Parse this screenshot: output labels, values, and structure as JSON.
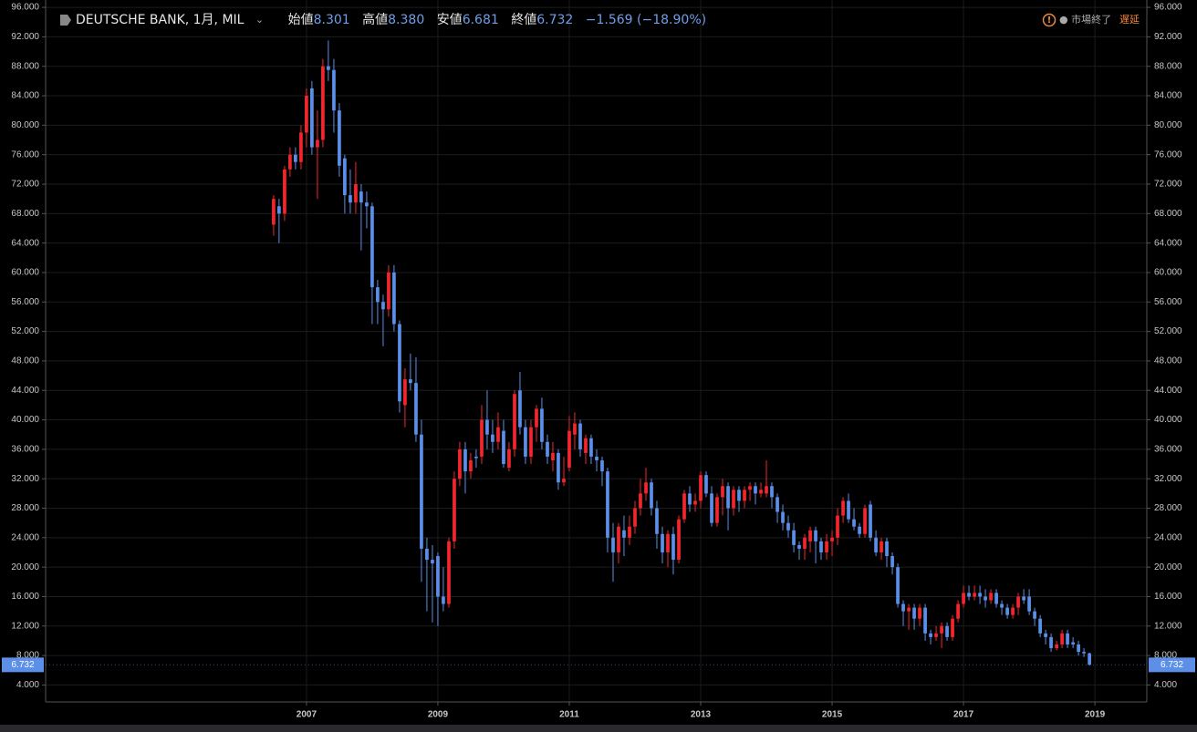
{
  "header": {
    "symbol": "DEUTSCHE BANK, 1月, MIL",
    "open_label": "始値",
    "open": "8.301",
    "high_label": "高値",
    "high": "8.380",
    "low_label": "安値",
    "low": "6.681",
    "close_label": "終値",
    "close": "6.732",
    "change": "−1.569 (−18.90%)",
    "status": "● 市場終了",
    "delay": "遅延"
  },
  "chart_data": {
    "type": "candlestick",
    "up_color": "#f2262d",
    "down_color": "#5b8fe8",
    "grid": true,
    "last_price_label": "6.732",
    "xlim": [
      2003.03,
      2019.79
    ],
    "ylim": [
      1.7,
      97
    ],
    "xticks": [
      2007,
      2009,
      2011,
      2013,
      2015,
      2017,
      2019
    ],
    "yticks": [
      {
        "value": 4,
        "label": "4.000"
      },
      {
        "value": 8,
        "label": "8.000"
      },
      {
        "value": 12,
        "label": "12.000"
      },
      {
        "value": 16,
        "label": "16.000"
      },
      {
        "value": 20,
        "label": "20.000"
      },
      {
        "value": 24,
        "label": "24.000"
      },
      {
        "value": 28,
        "label": "28.000"
      },
      {
        "value": 32,
        "label": "32.000"
      },
      {
        "value": 36,
        "label": "36.000"
      },
      {
        "value": 40,
        "label": "40.000"
      },
      {
        "value": 44,
        "label": "44.000"
      },
      {
        "value": 48,
        "label": "48.000"
      },
      {
        "value": 52,
        "label": "52.000"
      },
      {
        "value": 56,
        "label": "56.000"
      },
      {
        "value": 60,
        "label": "60.000"
      },
      {
        "value": 64,
        "label": "64.000"
      },
      {
        "value": 68,
        "label": "68.000"
      },
      {
        "value": 72,
        "label": "72.000"
      },
      {
        "value": 76,
        "label": "76.000"
      },
      {
        "value": 80,
        "label": "80.000"
      },
      {
        "value": 84,
        "label": "84.000"
      },
      {
        "value": 88,
        "label": "88.000"
      },
      {
        "value": 92,
        "label": "92.000"
      },
      {
        "value": 96,
        "label": "96.000"
      }
    ],
    "x": [
      2006.5,
      2006.583,
      2006.667,
      2006.75,
      2006.833,
      2006.917,
      2007.0,
      2007.083,
      2007.167,
      2007.25,
      2007.333,
      2007.417,
      2007.5,
      2007.583,
      2007.667,
      2007.75,
      2007.833,
      2007.917,
      2008.0,
      2008.083,
      2008.167,
      2008.25,
      2008.333,
      2008.417,
      2008.5,
      2008.583,
      2008.667,
      2008.75,
      2008.833,
      2008.917,
      2009.0,
      2009.083,
      2009.167,
      2009.25,
      2009.333,
      2009.417,
      2009.5,
      2009.583,
      2009.667,
      2009.75,
      2009.833,
      2009.917,
      2010.0,
      2010.083,
      2010.167,
      2010.25,
      2010.333,
      2010.417,
      2010.5,
      2010.583,
      2010.667,
      2010.75,
      2010.833,
      2010.917,
      2011.0,
      2011.083,
      2011.167,
      2011.25,
      2011.333,
      2011.417,
      2011.5,
      2011.583,
      2011.667,
      2011.75,
      2011.833,
      2011.917,
      2012.0,
      2012.083,
      2012.167,
      2012.25,
      2012.333,
      2012.417,
      2012.5,
      2012.583,
      2012.667,
      2012.75,
      2012.833,
      2012.917,
      2013.0,
      2013.083,
      2013.167,
      2013.25,
      2013.333,
      2013.417,
      2013.5,
      2013.583,
      2013.667,
      2013.75,
      2013.833,
      2013.917,
      2014.0,
      2014.083,
      2014.167,
      2014.25,
      2014.333,
      2014.417,
      2014.5,
      2014.583,
      2014.667,
      2014.75,
      2014.833,
      2014.917,
      2015.0,
      2015.083,
      2015.167,
      2015.25,
      2015.333,
      2015.417,
      2015.5,
      2015.583,
      2015.667,
      2015.75,
      2015.833,
      2015.917,
      2016.0,
      2016.083,
      2016.167,
      2016.25,
      2016.333,
      2016.417,
      2016.5,
      2016.583,
      2016.667,
      2016.75,
      2016.833,
      2016.917,
      2017.0,
      2017.083,
      2017.167,
      2017.25,
      2017.333,
      2017.417,
      2017.5,
      2017.583,
      2017.667,
      2017.75,
      2017.833,
      2017.917,
      2018.0,
      2018.083,
      2018.167,
      2018.25,
      2018.333,
      2018.417,
      2018.5,
      2018.583,
      2018.667,
      2018.75,
      2018.833,
      2018.917
    ],
    "open": [
      66.5,
      69,
      68,
      74,
      76,
      75,
      79,
      85,
      77,
      78,
      88,
      87.5,
      82,
      75.5,
      70.5,
      69.5,
      71,
      69.5,
      69,
      58,
      56,
      55,
      60,
      53,
      42,
      45.5,
      45,
      38,
      22.5,
      21,
      21.5,
      16,
      15,
      23.5,
      32,
      36,
      33,
      35,
      35,
      40,
      38,
      37,
      38.5,
      33.5,
      36,
      44,
      39,
      35,
      39,
      41.5,
      37,
      34.5,
      35.5,
      31.5,
      33.5,
      38,
      39.5,
      35.5,
      37.5,
      35,
      34.5,
      33,
      24,
      22,
      25,
      24,
      25.5,
      28,
      30,
      31.5,
      28,
      24.5,
      22,
      24.5,
      21,
      26.5,
      30,
      28.5,
      29,
      32.5,
      30,
      26,
      29.5,
      31,
      28,
      30.5,
      29,
      30.5,
      31,
      30,
      30,
      31,
      29.5,
      27.5,
      26,
      25,
      23,
      22.5,
      23.5,
      25,
      23.5,
      22,
      23.5,
      24,
      27,
      29,
      26.5,
      25.5,
      24.5,
      28.5,
      24,
      22,
      23.5,
      21.5,
      20,
      15,
      14,
      14.5,
      13,
      14.5,
      11,
      10.5,
      11,
      12,
      10.5,
      13,
      15,
      16.5,
      16,
      16.5,
      16,
      15.5,
      16.5,
      15,
      14.5,
      13.5,
      14.5,
      16,
      16,
      14,
      13,
      11,
      10.5,
      9,
      9.5,
      11,
      9.8,
      9.5,
      8.5,
      8.301
    ],
    "high": [
      70.5,
      70,
      74.5,
      77,
      77,
      80,
      85,
      86,
      82,
      89,
      91.5,
      89,
      83,
      76,
      74,
      75,
      72,
      71,
      69.5,
      59,
      57,
      61,
      61,
      53.5,
      47,
      49,
      48.5,
      40,
      24,
      23,
      22,
      20,
      24,
      33,
      37,
      37,
      35.5,
      36,
      42,
      44,
      40,
      41,
      40,
      37,
      44,
      46.5,
      40,
      40,
      42,
      43,
      38,
      37,
      36,
      35,
      40.5,
      41,
      40,
      38,
      38,
      36,
      35,
      33.5,
      26,
      26,
      27,
      27,
      29,
      32,
      33.5,
      32,
      29,
      25.5,
      25,
      25.5,
      27,
      30.5,
      31,
      30,
      33,
      33,
      31,
      30,
      32,
      31.5,
      31,
      31,
      31,
      31.5,
      31.5,
      31.5,
      34.5,
      31.5,
      30,
      28.5,
      27,
      26,
      23.5,
      24.5,
      25.5,
      25.5,
      24,
      24.5,
      25,
      28,
      29.5,
      30,
      28,
      26,
      28.5,
      29,
      25,
      24,
      24,
      22,
      20.5,
      15.5,
      15,
      15,
      15,
      15,
      11.5,
      12,
      12.5,
      12.5,
      13.5,
      15.5,
      17.5,
      17.5,
      17.5,
      17.5,
      17,
      17,
      17,
      15.5,
      15,
      15,
      16.5,
      17,
      17,
      14.5,
      13.5,
      11.5,
      11,
      10,
      11.5,
      11.5,
      10.5,
      10,
      9,
      8.38
    ],
    "low": [
      65,
      64,
      67,
      73,
      74,
      74,
      77,
      76,
      70,
      77,
      86,
      79,
      73,
      68,
      68,
      68,
      63,
      66,
      53,
      53,
      50,
      54,
      52,
      41,
      39,
      44,
      37,
      18,
      14,
      12.5,
      12,
      14,
      14.5,
      22.5,
      31,
      30,
      32,
      33.5,
      34,
      36,
      35.5,
      36,
      33.5,
      33,
      35,
      38,
      34,
      34,
      37,
      36,
      34,
      33,
      30.5,
      31,
      33,
      36,
      35,
      34,
      34,
      33,
      31,
      22,
      18,
      20.5,
      21.5,
      23,
      24.5,
      27,
      29,
      27,
      22.5,
      20.5,
      20,
      19,
      20.5,
      26,
      27.5,
      27.5,
      28,
      29.5,
      25.5,
      25.5,
      27,
      25,
      27,
      27.5,
      28,
      29,
      28.5,
      29.5,
      29.5,
      28,
      26,
      25,
      24,
      22,
      21,
      21,
      22,
      20.5,
      21,
      21,
      21.5,
      23,
      26,
      26,
      25,
      24,
      24,
      23.5,
      21.5,
      21,
      20,
      19,
      14.5,
      12,
      11.5,
      11.5,
      12,
      10,
      9.5,
      10,
      9,
      10,
      10,
      12.5,
      14.5,
      15.5,
      15.5,
      15,
      14.5,
      15,
      14.5,
      13.5,
      13,
      13,
      13.5,
      15,
      13.5,
      12,
      10.5,
      9.5,
      8.5,
      8.7,
      9,
      9,
      9,
      8,
      7.8,
      6.681
    ],
    "close": [
      70,
      68,
      74,
      76,
      75,
      79,
      84,
      77,
      78,
      88,
      87.5,
      82,
      74.5,
      70.5,
      69.5,
      72,
      69.5,
      69,
      58,
      56,
      55,
      60,
      53,
      42.5,
      45.5,
      45,
      38,
      22.5,
      21,
      20.5,
      16,
      15,
      23.5,
      32,
      36,
      33,
      34.5,
      34.8,
      40,
      38,
      37,
      39,
      34,
      36,
      43.5,
      39,
      35,
      39,
      41.5,
      37,
      35,
      35.5,
      31.5,
      32,
      38.5,
      39.5,
      36,
      37.5,
      35,
      34.5,
      33,
      24,
      22,
      25.5,
      24,
      25.5,
      28,
      30,
      31.5,
      28,
      24.5,
      22,
      24.5,
      21,
      26.5,
      30,
      28.5,
      29,
      32.5,
      30,
      26,
      29.5,
      31,
      28,
      30.5,
      29,
      30.5,
      31,
      30,
      30.5,
      31,
      29.5,
      27.5,
      26,
      25,
      23,
      22.5,
      24,
      25,
      23.5,
      22,
      23.5,
      24,
      27,
      29,
      26.5,
      25.5,
      24.5,
      28,
      24,
      22,
      23.5,
      21.5,
      20,
      15,
      14,
      14.5,
      13,
      14.5,
      11,
      10.5,
      11,
      12,
      10.5,
      13,
      15,
      16.5,
      16,
      16.5,
      16,
      15.5,
      16.5,
      15,
      14.5,
      13.5,
      14.5,
      16,
      15.5,
      14,
      13,
      11,
      10.5,
      9,
      9.5,
      11,
      9.5,
      9.5,
      8.5,
      8.3,
      6.732
    ]
  }
}
